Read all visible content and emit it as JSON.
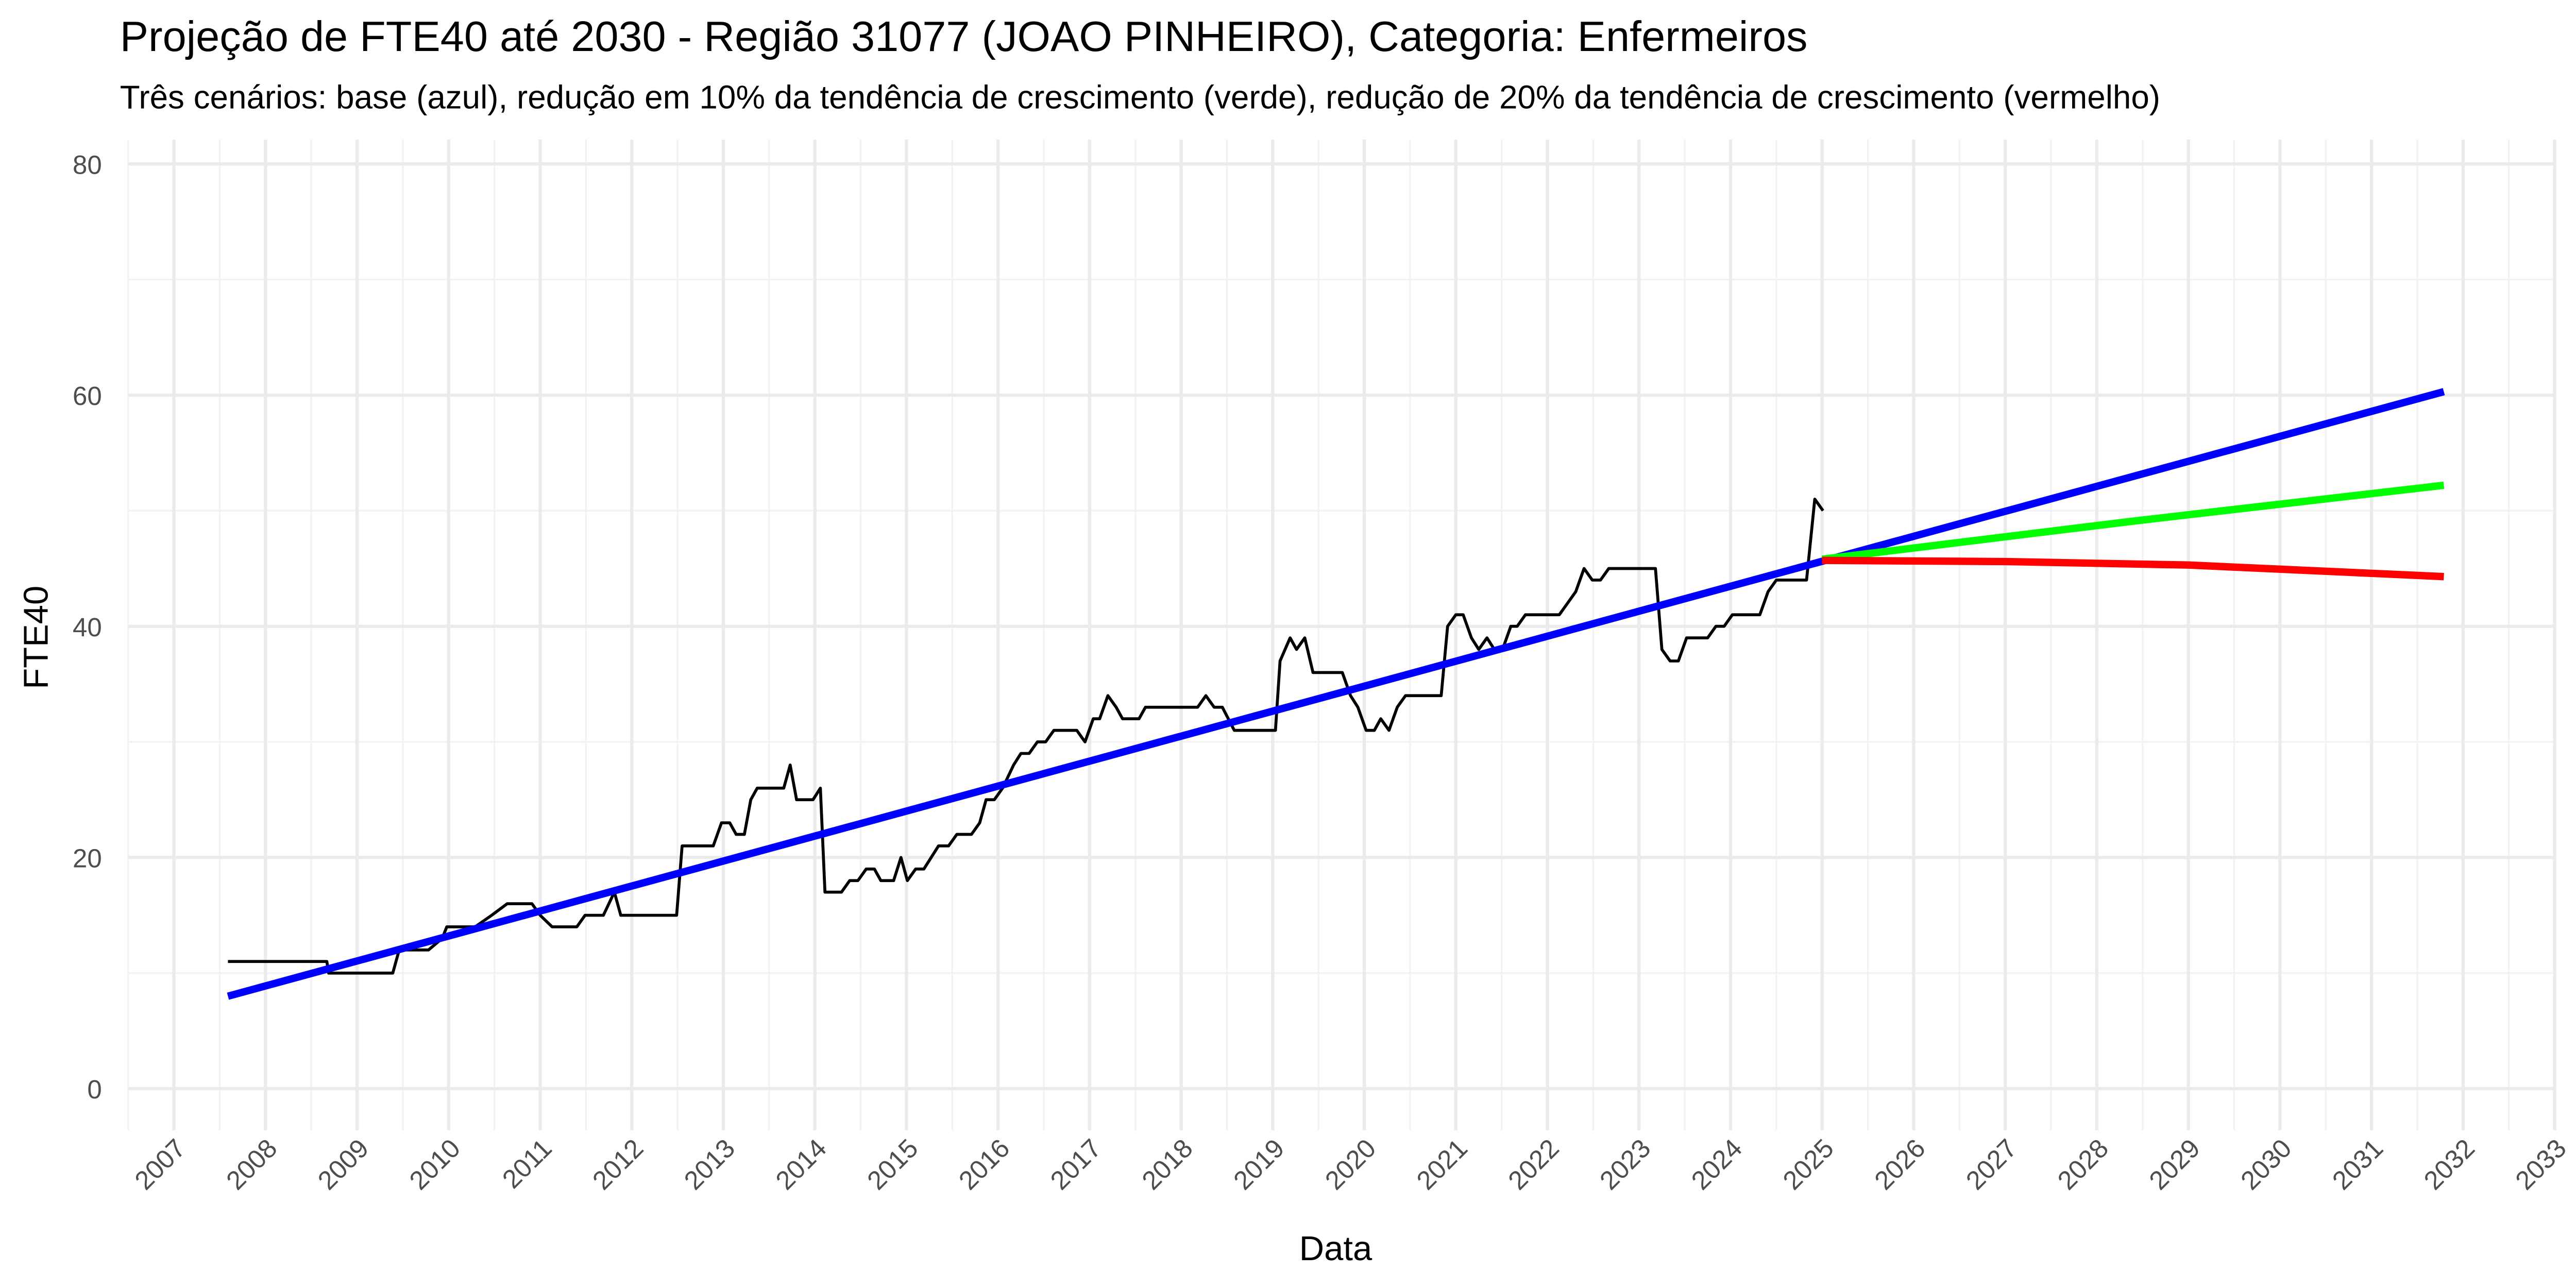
{
  "chart_data": {
    "type": "line",
    "title": "Projeção de FTE40 até 2030 - Região 31077 (JOAO PINHEIRO), Categoria: Enfermeiros",
    "subtitle": "Três cenários: base (azul), redução em 10% da tendência de crescimento (verde), redução de 20% da tendência de crescimento (vermelho)",
    "x_label": "Data",
    "y_label": "FTE40",
    "xlim": [
      2006.5,
      2033
    ],
    "ylim": [
      -3.6,
      82.1
    ],
    "xticks": [
      2007,
      2008,
      2009,
      2010,
      2011,
      2012,
      2013,
      2014,
      2015,
      2016,
      2017,
      2018,
      2019,
      2020,
      2021,
      2022,
      2023,
      2024,
      2025,
      2026,
      2027,
      2028,
      2029,
      2030,
      2031,
      2032,
      2033
    ],
    "yticks": [
      0,
      20,
      40,
      60,
      80
    ],
    "grid": true,
    "series": [
      {
        "color": "#000000",
        "width": 1.8,
        "x": [
          2007.59,
          2008.67,
          2008.69,
          2009.39,
          2009.46,
          2009.78,
          2009.93,
          2009.98,
          2010.29,
          2010.47,
          2010.64,
          2010.91,
          2011.0,
          2011.13,
          2011.4,
          2011.49,
          2011.69,
          2011.81,
          2011.88,
          2012.49,
          2012.55,
          2012.89,
          2012.98,
          2013.07,
          2013.14,
          2013.23,
          2013.3,
          2013.37,
          2013.66,
          2013.73,
          2013.8,
          2013.98,
          2014.06,
          2014.11,
          2014.29,
          2014.38,
          2014.47,
          2014.56,
          2014.65,
          2014.72,
          2014.86,
          2014.94,
          2015.01,
          2015.1,
          2015.19,
          2015.35,
          2015.46,
          2015.55,
          2015.71,
          2015.8,
          2015.87,
          2015.96,
          2016.05,
          2016.17,
          2016.25,
          2016.34,
          2016.43,
          2016.52,
          2016.61,
          2016.86,
          2016.95,
          2017.04,
          2017.11,
          2017.2,
          2017.29,
          2017.36,
          2017.54,
          2017.61,
          2018.18,
          2018.27,
          2018.36,
          2018.45,
          2018.58,
          2019.03,
          2019.08,
          2019.19,
          2019.26,
          2019.35,
          2019.44,
          2019.76,
          2019.85,
          2019.93,
          2020.02,
          2020.11,
          2020.18,
          2020.27,
          2020.36,
          2020.45,
          2020.84,
          2020.91,
          2021.0,
          2021.08,
          2021.17,
          2021.25,
          2021.34,
          2021.42,
          2021.51,
          2021.6,
          2021.67,
          2021.76,
          2022.13,
          2022.22,
          2022.31,
          2022.4,
          2022.49,
          2022.58,
          2022.67,
          2023.18,
          2023.25,
          2023.34,
          2023.43,
          2023.52,
          2023.75,
          2023.84,
          2023.93,
          2024.02,
          2024.32,
          2024.41,
          2024.5,
          2024.83,
          2024.92,
          2025.01
        ],
        "values": [
          11,
          11,
          10,
          10,
          12,
          12,
          13,
          14,
          14,
          15,
          16,
          16,
          15,
          14,
          14,
          15,
          15,
          17,
          15,
          15,
          21,
          21,
          23,
          23,
          22,
          22,
          25,
          26,
          26,
          28,
          25,
          25,
          26,
          17,
          17,
          18,
          18,
          19,
          19,
          18,
          18,
          20,
          18,
          19,
          19,
          21,
          21,
          22,
          22,
          23,
          25,
          25,
          26,
          28,
          29,
          29,
          30,
          30,
          31,
          31,
          30,
          32,
          32,
          34,
          33,
          32,
          32,
          33,
          33,
          34,
          33,
          33,
          31,
          31,
          37,
          39,
          38,
          39,
          36,
          36,
          34,
          33,
          31,
          31,
          32,
          31,
          33,
          34,
          34,
          40,
          41,
          41,
          39,
          38,
          39,
          38,
          38,
          40,
          40,
          41,
          41,
          42,
          43,
          45,
          44,
          44,
          45,
          45,
          38,
          37,
          37,
          39,
          39,
          40,
          40,
          41,
          41,
          43,
          44,
          44,
          51,
          50
        ]
      },
      {
        "color": "#0000ff",
        "width": 4.5,
        "x": [
          2007.59,
          2031.79
        ],
        "values": [
          8,
          60.3
        ]
      },
      {
        "color": "#00ff00",
        "width": 4.5,
        "x": [
          2025.0,
          2028.4,
          2031.79
        ],
        "values": [
          45.8,
          49.1,
          52.2
        ]
      },
      {
        "color": "#ff0000",
        "width": 4.5,
        "x": [
          2025.0,
          2027.0,
          2029.0,
          2031.79
        ],
        "values": [
          45.7,
          45.6,
          45.3,
          44.3
        ]
      }
    ]
  }
}
